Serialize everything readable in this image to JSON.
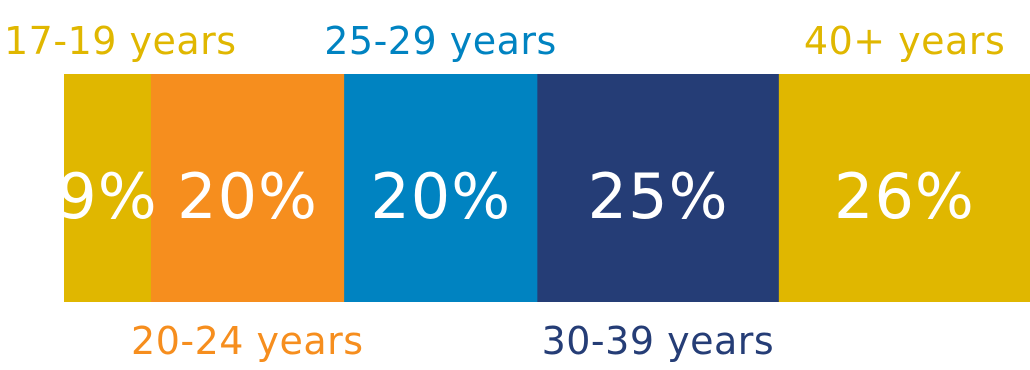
{
  "chart_data": {
    "type": "bar",
    "stacked": true,
    "orientation": "horizontal",
    "unit": "%",
    "categories": [
      "17-19 years",
      "20-24 years",
      "25-29 years",
      "30-39 years",
      "40+ years"
    ],
    "values": [
      9,
      20,
      20,
      25,
      26
    ],
    "value_labels": [
      "9%",
      "20%",
      "20%",
      "25%",
      "26%"
    ],
    "colors": [
      "#E0B700",
      "#F68E1E",
      "#0083C1",
      "#253D76",
      "#E0B700"
    ],
    "label_positions": [
      "top",
      "bottom",
      "top",
      "bottom",
      "top"
    ]
  }
}
